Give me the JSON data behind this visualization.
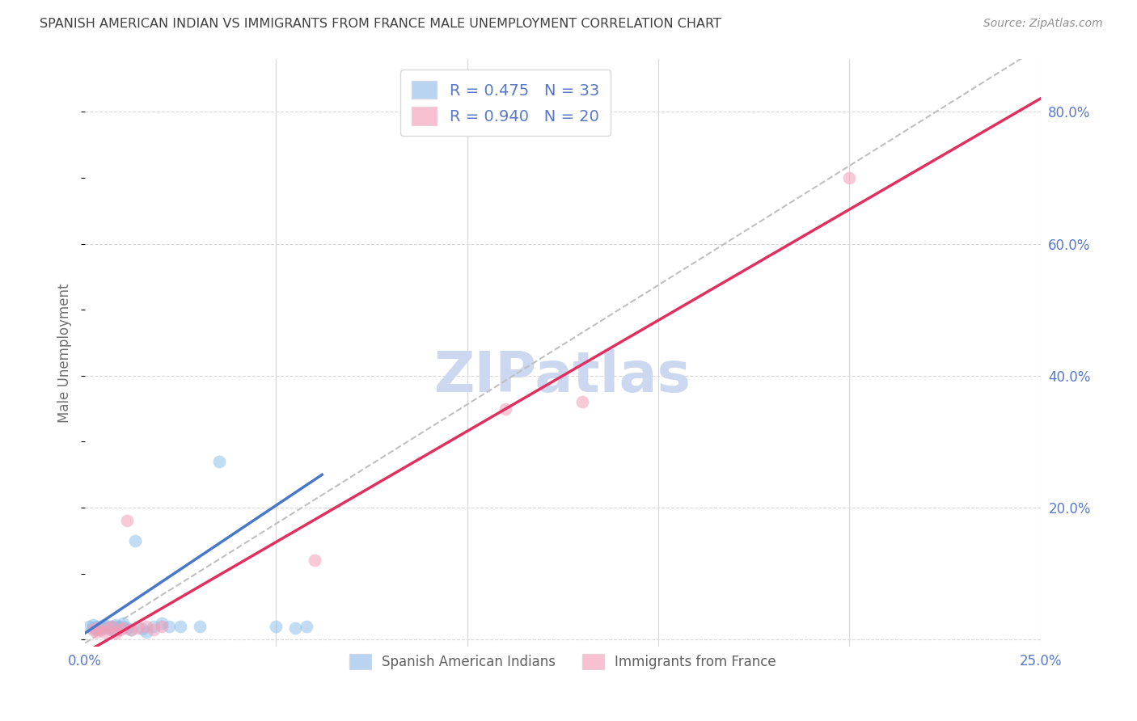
{
  "title": "SPANISH AMERICAN INDIAN VS IMMIGRANTS FROM FRANCE MALE UNEMPLOYMENT CORRELATION CHART",
  "source": "Source: ZipAtlas.com",
  "ylabel": "Male Unemployment",
  "xlim": [
    0.0,
    0.25
  ],
  "ylim": [
    -0.01,
    0.88
  ],
  "xticks": [
    0.0,
    0.05,
    0.1,
    0.15,
    0.2,
    0.25
  ],
  "yticks_right": [
    0.0,
    0.2,
    0.4,
    0.6,
    0.8
  ],
  "ytick_labels_right": [
    "",
    "20.0%",
    "40.0%",
    "60.0%",
    "80.0%"
  ],
  "xtick_labels": [
    "0.0%",
    "",
    "",
    "",
    "",
    "25.0%"
  ],
  "legend_label1": "Spanish American Indians",
  "legend_label2": "Immigrants from France",
  "blue_scatter_x": [
    0.001,
    0.002,
    0.002,
    0.003,
    0.003,
    0.003,
    0.004,
    0.004,
    0.005,
    0.005,
    0.006,
    0.006,
    0.007,
    0.007,
    0.008,
    0.008,
    0.009,
    0.01,
    0.01,
    0.011,
    0.012,
    0.013,
    0.015,
    0.016,
    0.018,
    0.02,
    0.022,
    0.025,
    0.03,
    0.035,
    0.05,
    0.055,
    0.058
  ],
  "blue_scatter_y": [
    0.02,
    0.018,
    0.022,
    0.016,
    0.02,
    0.018,
    0.015,
    0.02,
    0.018,
    0.022,
    0.02,
    0.018,
    0.015,
    0.02,
    0.02,
    0.022,
    0.018,
    0.02,
    0.025,
    0.017,
    0.015,
    0.15,
    0.016,
    0.012,
    0.02,
    0.025,
    0.02,
    0.02,
    0.02,
    0.27,
    0.02,
    0.018,
    0.02
  ],
  "pink_scatter_x": [
    0.002,
    0.003,
    0.003,
    0.004,
    0.005,
    0.006,
    0.007,
    0.008,
    0.009,
    0.01,
    0.011,
    0.012,
    0.014,
    0.016,
    0.018,
    0.02,
    0.06,
    0.11,
    0.13,
    0.2
  ],
  "pink_scatter_y": [
    0.015,
    0.012,
    0.018,
    0.015,
    0.012,
    0.018,
    0.02,
    0.01,
    0.015,
    0.018,
    0.18,
    0.015,
    0.018,
    0.02,
    0.015,
    0.02,
    0.12,
    0.35,
    0.36,
    0.7
  ],
  "blue_color": "#8ec0ea",
  "pink_color": "#f4a0b8",
  "blue_line_color": "#4878c8",
  "pink_line_color": "#e03060",
  "dashed_line_color": "#c0c0c0",
  "blue_line_x_end": 0.062,
  "marker_size": 130,
  "alpha": 0.55,
  "title_color": "#404040",
  "axis_color": "#5878c8",
  "grid_color": "#d8d8d8",
  "background_color": "#ffffff",
  "watermark": "ZIPatlas",
  "watermark_color": "#ccd8f0"
}
